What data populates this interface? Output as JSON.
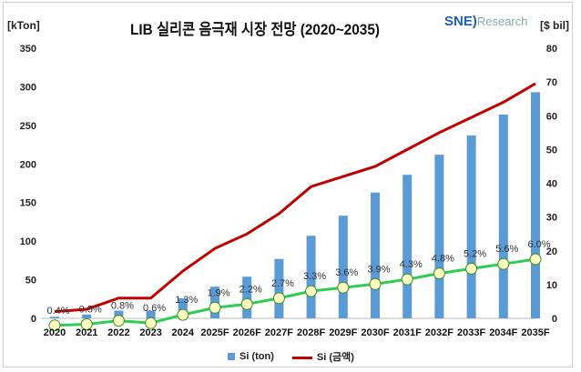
{
  "chart_data": {
    "type": "bar+line",
    "title": "LIB 실리콘 음극재 시장 전망 (2020~2035)",
    "ylabel_left": "[kTon]",
    "ylabel_right": "[$ bil]",
    "ylim_left": [
      0,
      350
    ],
    "ylim_right": [
      0,
      80
    ],
    "yticks_left": [
      0,
      50,
      100,
      150,
      200,
      250,
      300,
      350
    ],
    "yticks_right": [
      0,
      10,
      20,
      30,
      40,
      50,
      60,
      70,
      80
    ],
    "grid": false,
    "legend": "bottom",
    "categories": [
      "2020",
      "2021",
      "2022",
      "2023",
      "2024",
      "2025F",
      "2026F",
      "2027F",
      "2028F",
      "2029F",
      "2030F",
      "2031F",
      "2032F",
      "2033F",
      "2034F",
      "2035F"
    ],
    "series": [
      {
        "name": "Si (ton)",
        "type": "bar",
        "axis": "left",
        "color": "#5b9bd5",
        "values": [
          2,
          5,
          10,
          10,
          26,
          41,
          54,
          77,
          107,
          133,
          163,
          186,
          212,
          237,
          264,
          293
        ]
      },
      {
        "name": "Si (금액)",
        "type": "line",
        "axis": "right",
        "color": "#c00000",
        "values": [
          2,
          2.7,
          6,
          6,
          14,
          20.7,
          25,
          31,
          39,
          42,
          45,
          50,
          55,
          59.5,
          64,
          69.5
        ]
      },
      {
        "type": "line",
        "axis": "none",
        "color": "#2ecc52",
        "marker_fill": "#ffffc0",
        "labels": [
          "0.4%",
          "0.5%",
          "0.8%",
          "0.6%",
          "1.3%",
          "1.9%",
          "2.2%",
          "2.7%",
          "3.3%",
          "3.6%",
          "3.9%",
          "4.3%",
          "4.8%",
          "5.2%",
          "5.6%",
          "6.0%"
        ],
        "values": [
          0.4,
          0.5,
          0.8,
          0.6,
          1.3,
          1.9,
          2.2,
          2.7,
          3.3,
          3.6,
          3.9,
          4.3,
          4.8,
          5.2,
          5.6,
          6.0
        ]
      }
    ]
  },
  "logo": {
    "brand": "SNE",
    "text": "Research"
  }
}
